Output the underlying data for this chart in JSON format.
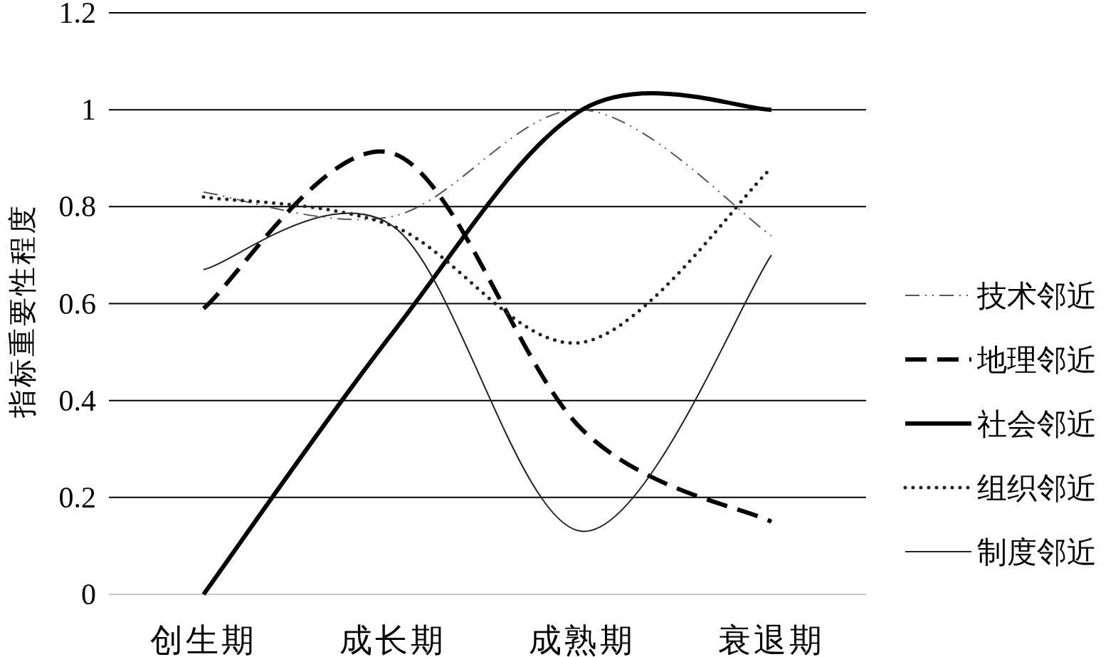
{
  "chart_data": {
    "type": "line",
    "ylabel": "指标重要性程度",
    "categories": [
      "创生期",
      "成长期",
      "成熟期",
      "衰退期"
    ],
    "series": [
      {
        "name": "技术邻近",
        "color": "#555555",
        "line_style": "dashdotdot",
        "values": [
          0.83,
          0.78,
          1.0,
          0.74
        ]
      },
      {
        "name": "地理邻近",
        "color": "#000000",
        "line_style": "dashed",
        "values": [
          0.59,
          0.91,
          0.34,
          0.15
        ]
      },
      {
        "name": "社会邻近",
        "color": "#000000",
        "line_style": "solid",
        "values": [
          0,
          0.54,
          1.0,
          1.0
        ]
      },
      {
        "name": "组织邻近",
        "color": "#222222",
        "line_style": "dotted",
        "values": [
          0.82,
          0.76,
          0.52,
          0.88
        ]
      },
      {
        "name": "制度邻近",
        "color": "#222222",
        "line_style": "solid",
        "values": [
          0.67,
          0.76,
          0.13,
          0.7
        ]
      }
    ],
    "ylim": [
      0,
      1.2
    ],
    "yticks": [
      0,
      0.2,
      0.4,
      0.6,
      0.8,
      1,
      1.2
    ],
    "grid": "y",
    "legend": "right",
    "marker": "none"
  }
}
